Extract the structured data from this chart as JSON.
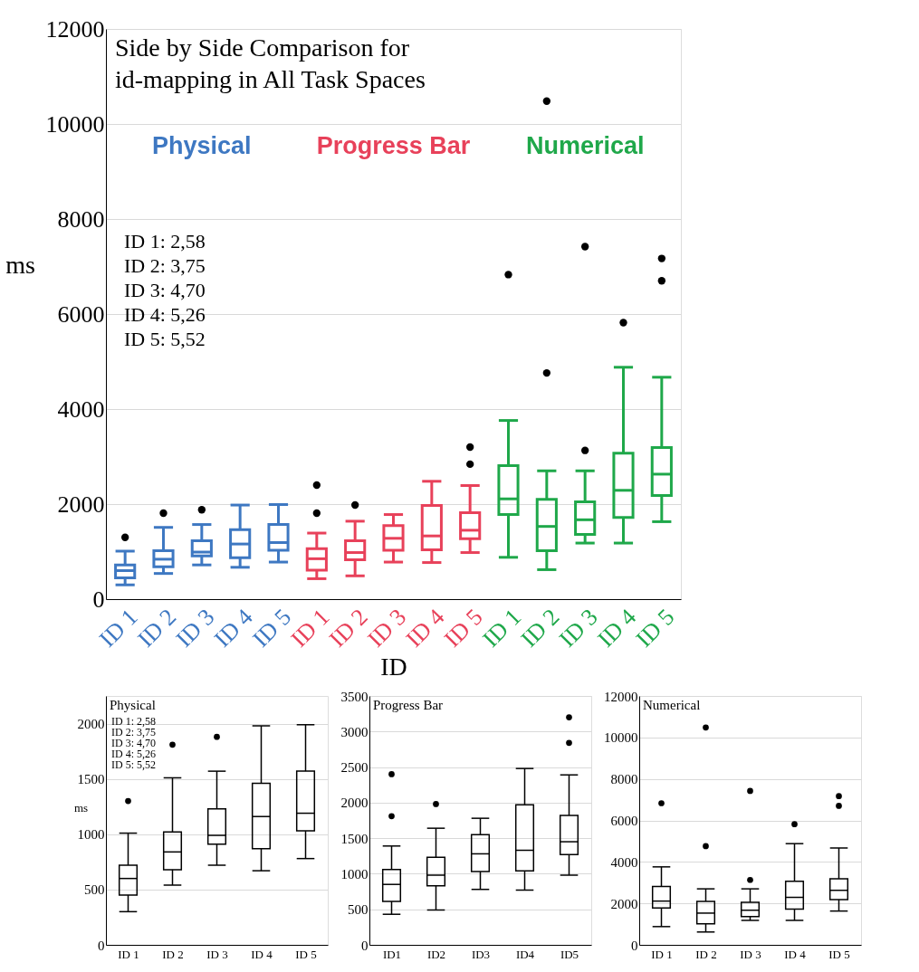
{
  "chart_data": [
    {
      "type": "box",
      "title": "Side by Side Comparison for\nid-mapping in All Task Spaces",
      "xlabel": "ID",
      "ylabel": "ms",
      "categories": [
        "ID 1",
        "ID 2",
        "ID 3",
        "ID 4",
        "ID 5",
        "ID 1",
        "ID 2",
        "ID 3",
        "ID 4",
        "ID 5",
        "ID 1",
        "ID 2",
        "ID 3",
        "ID 4",
        "ID 5"
      ],
      "ylim": [
        0,
        12000
      ],
      "yticks": [
        0,
        2000,
        4000,
        6000,
        8000,
        10000,
        12000
      ],
      "grid": "y",
      "legend": "top",
      "annotations": [
        "ID 1:  2,58",
        "ID 2:  3,75",
        "ID 3:  4,70",
        "ID 4:  5,26",
        "ID 5:  5,52"
      ],
      "series": [
        {
          "name": "Physical",
          "color": "#3e78c2",
          "boxes": [
            {
              "low": 300,
              "q1": 450,
              "median": 600,
              "q3": 720,
              "high": 1010,
              "outliers": [
                1300
              ]
            },
            {
              "low": 540,
              "q1": 680,
              "median": 840,
              "q3": 1020,
              "high": 1510,
              "outliers": [
                1810
              ]
            },
            {
              "low": 720,
              "q1": 910,
              "median": 990,
              "q3": 1230,
              "high": 1570,
              "outliers": [
                1880
              ]
            },
            {
              "low": 670,
              "q1": 870,
              "median": 1160,
              "q3": 1460,
              "high": 1980
            },
            {
              "low": 780,
              "q1": 1030,
              "median": 1190,
              "q3": 1570,
              "high": 1990
            },
            null,
            null,
            null,
            null,
            null,
            null,
            null,
            null,
            null,
            null
          ]
        },
        {
          "name": "Progress Bar",
          "color": "#e8415a",
          "boxes": [
            null,
            null,
            null,
            null,
            null,
            {
              "low": 430,
              "q1": 610,
              "median": 850,
              "q3": 1060,
              "high": 1390,
              "outliers": [
                2400,
                1810
              ]
            },
            {
              "low": 490,
              "q1": 830,
              "median": 980,
              "q3": 1230,
              "high": 1640,
              "outliers": [
                1980
              ]
            },
            {
              "low": 780,
              "q1": 1030,
              "median": 1280,
              "q3": 1550,
              "high": 1780
            },
            {
              "low": 770,
              "q1": 1040,
              "median": 1330,
              "q3": 1970,
              "high": 2480
            },
            {
              "low": 980,
              "q1": 1270,
              "median": 1450,
              "q3": 1820,
              "high": 2390,
              "outliers": [
                3200,
                2840
              ]
            },
            null,
            null,
            null,
            null,
            null
          ]
        },
        {
          "name": "Numerical",
          "color": "#1fa84a",
          "boxes": [
            null,
            null,
            null,
            null,
            null,
            null,
            null,
            null,
            null,
            null,
            {
              "low": 880,
              "q1": 1780,
              "median": 2110,
              "q3": 2810,
              "high": 3760,
              "outliers": [
                6830
              ]
            },
            {
              "low": 620,
              "q1": 1020,
              "median": 1530,
              "q3": 2100,
              "high": 2700,
              "outliers": [
                10480,
                4760
              ]
            },
            {
              "low": 1180,
              "q1": 1360,
              "median": 1670,
              "q3": 2050,
              "high": 2700,
              "outliers": [
                7420,
                3130
              ]
            },
            {
              "low": 1180,
              "q1": 1720,
              "median": 2290,
              "q3": 3070,
              "high": 4880,
              "outliers": [
                5820
              ]
            },
            {
              "low": 1630,
              "q1": 2180,
              "median": 2630,
              "q3": 3190,
              "high": 4670,
              "outliers": [
                7170,
                6700
              ]
            }
          ]
        }
      ]
    },
    {
      "type": "box",
      "title": "Physical",
      "ylabel": "ms",
      "categories": [
        "ID 1",
        "ID 2",
        "ID 3",
        "ID 4",
        "ID 5"
      ],
      "ylim": [
        0,
        2250
      ],
      "yticks": [
        0,
        500,
        1000,
        1500,
        2000
      ],
      "grid": "y",
      "annotations": [
        "ID 1:  2,58",
        "ID 2:  3,75",
        "ID 3:  4,70",
        "ID 4:  5,26",
        "ID 5:  5,52"
      ],
      "series": [
        {
          "color": "#000000",
          "boxes": [
            {
              "low": 300,
              "q1": 450,
              "median": 600,
              "q3": 720,
              "high": 1010,
              "outliers": [
                1300
              ]
            },
            {
              "low": 540,
              "q1": 680,
              "median": 840,
              "q3": 1020,
              "high": 1510,
              "outliers": [
                1810
              ]
            },
            {
              "low": 720,
              "q1": 910,
              "median": 990,
              "q3": 1230,
              "high": 1570,
              "outliers": [
                1880
              ]
            },
            {
              "low": 670,
              "q1": 870,
              "median": 1160,
              "q3": 1460,
              "high": 1980
            },
            {
              "low": 780,
              "q1": 1030,
              "median": 1190,
              "q3": 1570,
              "high": 1990
            }
          ]
        }
      ]
    },
    {
      "type": "box",
      "title": "Progress Bar",
      "categories": [
        "ID1",
        "ID2",
        "ID3",
        "ID4",
        "ID5"
      ],
      "ylim": [
        0,
        3500
      ],
      "yticks": [
        0,
        500,
        1000,
        1500,
        2000,
        2500,
        3000,
        3500
      ],
      "grid": "y",
      "series": [
        {
          "color": "#000000",
          "boxes": [
            {
              "low": 430,
              "q1": 610,
              "median": 850,
              "q3": 1060,
              "high": 1390,
              "outliers": [
                2400,
                1810
              ]
            },
            {
              "low": 490,
              "q1": 830,
              "median": 980,
              "q3": 1230,
              "high": 1640,
              "outliers": [
                1980
              ]
            },
            {
              "low": 780,
              "q1": 1030,
              "median": 1280,
              "q3": 1550,
              "high": 1780
            },
            {
              "low": 770,
              "q1": 1040,
              "median": 1330,
              "q3": 1970,
              "high": 2480
            },
            {
              "low": 980,
              "q1": 1270,
              "median": 1450,
              "q3": 1820,
              "high": 2390,
              "outliers": [
                3200,
                2840
              ]
            }
          ]
        }
      ]
    },
    {
      "type": "box",
      "title": "Numerical",
      "categories": [
        "ID 1",
        "ID 2",
        "ID 3",
        "ID 4",
        "ID 5"
      ],
      "ylim": [
        0,
        12000
      ],
      "yticks": [
        0,
        2000,
        4000,
        6000,
        8000,
        10000,
        12000
      ],
      "grid": "y",
      "series": [
        {
          "color": "#000000",
          "boxes": [
            {
              "low": 880,
              "q1": 1780,
              "median": 2110,
              "q3": 2810,
              "high": 3760,
              "outliers": [
                6830
              ]
            },
            {
              "low": 620,
              "q1": 1020,
              "median": 1530,
              "q3": 2100,
              "high": 2700,
              "outliers": [
                10480,
                4760
              ]
            },
            {
              "low": 1180,
              "q1": 1360,
              "median": 1670,
              "q3": 2050,
              "high": 2700,
              "outliers": [
                7420,
                3130
              ]
            },
            {
              "low": 1180,
              "q1": 1720,
              "median": 2290,
              "q3": 3070,
              "high": 4880,
              "outliers": [
                5820
              ]
            },
            {
              "low": 1630,
              "q1": 2180,
              "median": 2630,
              "q3": 3190,
              "high": 4670,
              "outliers": [
                7170,
                6700
              ]
            }
          ]
        }
      ]
    }
  ]
}
